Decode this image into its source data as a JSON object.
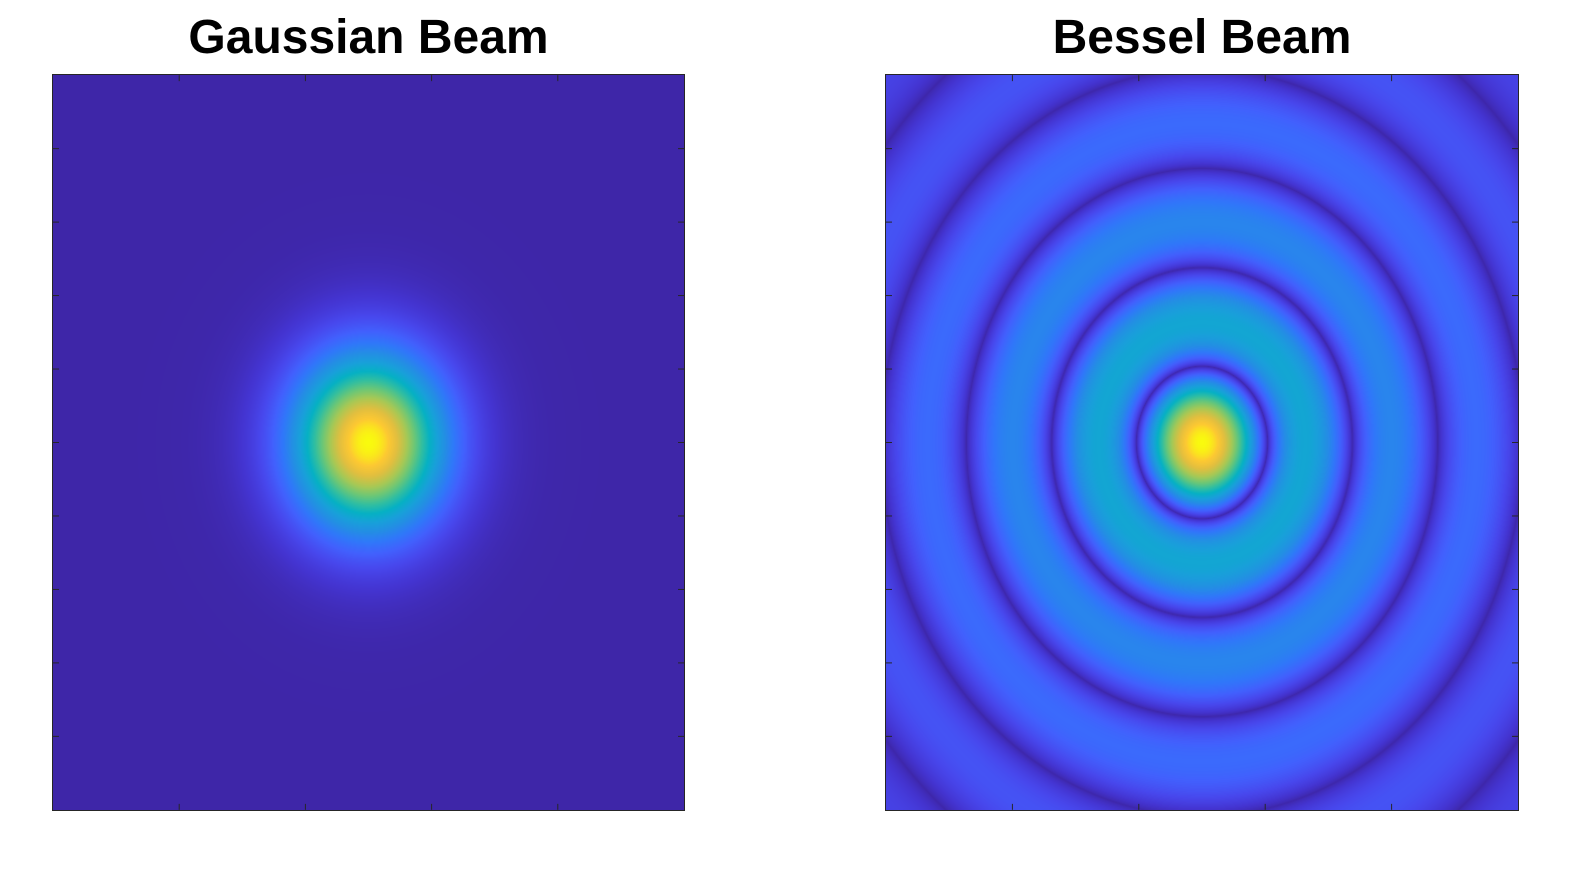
{
  "chart_data": [
    {
      "type": "heatmap",
      "title": "Gaussian Beam",
      "xlabel": "",
      "ylabel": "",
      "x_tick_labels": [],
      "y_tick_labels": [],
      "colormap": "parula",
      "grid": false,
      "legend": "none",
      "colors": {
        "background_low": "#3a28a6",
        "mid": "#31b4c3",
        "peak": "#f9fb0e"
      },
      "beam": {
        "profile": "gaussian",
        "center": [
          0,
          0
        ],
        "x_range": [
          -1,
          1
        ],
        "y_range": [
          -1,
          1
        ],
        "waist_x": 0.36,
        "waist_y": 0.36,
        "peak_intensity": 1.0
      }
    },
    {
      "type": "heatmap",
      "title": "Bessel Beam",
      "xlabel": "",
      "ylabel": "",
      "x_tick_labels": [],
      "y_tick_labels": [],
      "colormap": "parula",
      "grid": false,
      "legend": "none",
      "colors": {
        "background_low": "#3a28a6",
        "ring": "#4150f0",
        "peak": "#f9fb0e"
      },
      "beam": {
        "profile": "bessel_j0_squared",
        "center": [
          0,
          0
        ],
        "x_range": [
          -1,
          1
        ],
        "y_range": [
          -1,
          1
        ],
        "radial_scale": 11.6,
        "envelope_width": 0.9,
        "peak_intensity": 1.0
      }
    }
  ]
}
